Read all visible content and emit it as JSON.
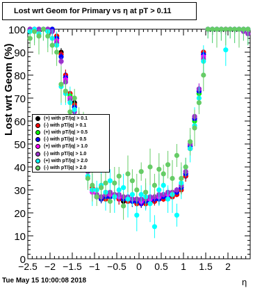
{
  "title": "Lost wrt Geom for Primary vs   η at pT > 0.11",
  "footer": {
    "timestamp": "Tue May 15 10:00:08 2018"
  },
  "chart_data": {
    "type": "scatter",
    "xlabel": "η",
    "ylabel": "Lost wrt Geom (%)",
    "xlim": [
      -2.5,
      2.5
    ],
    "ylim": [
      0,
      100
    ],
    "x_ticks": [
      "−2.5",
      "−2",
      "−1.5",
      "−1",
      "−0.5",
      "0",
      "0.5",
      "1",
      "1.5",
      "2"
    ],
    "x_tick_values": [
      -2.5,
      -2,
      -1.5,
      -1,
      -0.5,
      0,
      0.5,
      1,
      1.5,
      2
    ],
    "y_ticks": [
      "0",
      "10",
      "20",
      "30",
      "40",
      "50",
      "60",
      "70",
      "80",
      "90",
      "100"
    ],
    "y_tick_values": [
      0,
      10,
      20,
      30,
      40,
      50,
      60,
      70,
      80,
      90,
      100
    ],
    "legend_position": "left-middle",
    "series": [
      {
        "name": "(+) with pT/|q| > 0.1",
        "color": "#000000",
        "x": [
          -2.45,
          -2.35,
          -2.25,
          -2.15,
          -2.05,
          -1.95,
          -1.85,
          -1.75,
          -1.65,
          -1.55,
          -1.45,
          -1.35,
          -1.25,
          -1.15,
          -1.05,
          -0.95,
          -0.85,
          -0.75,
          -0.65,
          -0.55,
          -0.45,
          -0.35,
          -0.25,
          -0.15,
          -0.05,
          0.05,
          0.15,
          0.25,
          0.35,
          0.45,
          0.55,
          0.65,
          0.75,
          0.85,
          0.95,
          1.05,
          1.15,
          1.25,
          1.35,
          1.45,
          1.55,
          1.65,
          1.75,
          1.85,
          1.95,
          2.05,
          2.15,
          2.25,
          2.35,
          2.45
        ],
        "y": [
          100,
          100,
          100,
          100,
          100,
          100,
          97,
          90,
          80,
          72,
          68,
          62,
          52,
          40,
          30,
          27,
          26,
          26,
          27,
          27,
          26,
          25,
          25,
          25,
          24,
          24,
          24,
          25,
          25,
          26,
          26,
          27,
          27,
          28,
          30,
          36,
          48,
          60,
          72,
          90,
          100,
          100,
          100,
          100,
          100,
          100,
          100,
          100,
          100,
          100
        ]
      },
      {
        "name": "(-) with pT/|q| > 0.1",
        "color": "#ff0000",
        "x": [
          -2.45,
          -2.35,
          -2.25,
          -2.15,
          -2.05,
          -1.95,
          -1.85,
          -1.75,
          -1.65,
          -1.55,
          -1.45,
          -1.35,
          -1.25,
          -1.15,
          -1.05,
          -0.95,
          -0.85,
          -0.75,
          -0.65,
          -0.55,
          -0.45,
          -0.35,
          -0.25,
          -0.15,
          -0.05,
          0.05,
          0.15,
          0.25,
          0.35,
          0.45,
          0.55,
          0.65,
          0.75,
          0.85,
          0.95,
          1.05,
          1.15,
          1.25,
          1.35,
          1.45,
          1.55,
          1.65,
          1.75,
          1.85,
          1.95,
          2.05,
          2.15,
          2.25,
          2.35,
          2.45
        ],
        "y": [
          100,
          100,
          100,
          100,
          100,
          100,
          97,
          89,
          80,
          72,
          67,
          61,
          51,
          40,
          31,
          27,
          26,
          26,
          27,
          27,
          26,
          26,
          25,
          25,
          24,
          24,
          24,
          25,
          25,
          26,
          26,
          27,
          27,
          28,
          30,
          36,
          48,
          61,
          73,
          90,
          100,
          100,
          100,
          100,
          100,
          100,
          100,
          100,
          100,
          100
        ]
      },
      {
        "name": "(+) with pT/|q| > 0.5",
        "color": "#00ff00",
        "x": [
          -2.45,
          -2.35,
          -2.25,
          -2.15,
          -2.05,
          -1.95,
          -1.85,
          -1.75,
          -1.65,
          -1.55,
          -1.45,
          -1.35,
          -1.25,
          -1.15,
          -1.05,
          -0.95,
          -0.85,
          -0.75,
          -0.65,
          -0.55,
          -0.45,
          -0.35,
          -0.25,
          -0.15,
          -0.05,
          0.05,
          0.15,
          0.25,
          0.35,
          0.45,
          0.55,
          0.65,
          0.75,
          0.85,
          0.95,
          1.05,
          1.15,
          1.25,
          1.35,
          1.45,
          1.55,
          1.65,
          1.75,
          1.85,
          1.95,
          2.05,
          2.15,
          2.25,
          2.35,
          2.45
        ],
        "y": [
          100,
          100,
          100,
          100,
          100,
          100,
          96,
          88,
          79,
          71,
          66,
          60,
          50,
          39,
          30,
          27,
          26,
          27,
          28,
          27,
          27,
          26,
          26,
          25,
          25,
          25,
          25,
          25,
          26,
          26,
          27,
          27,
          28,
          29,
          31,
          37,
          49,
          60,
          72,
          89,
          100,
          100,
          100,
          100,
          100,
          100,
          100,
          100,
          100,
          100
        ]
      },
      {
        "name": "(-) with pT/|q| > 0.5",
        "color": "#0000ff",
        "x": [
          -2.45,
          -2.35,
          -2.25,
          -2.15,
          -2.05,
          -1.95,
          -1.85,
          -1.75,
          -1.65,
          -1.55,
          -1.45,
          -1.35,
          -1.25,
          -1.15,
          -1.05,
          -0.95,
          -0.85,
          -0.75,
          -0.65,
          -0.55,
          -0.45,
          -0.35,
          -0.25,
          -0.15,
          -0.05,
          0.05,
          0.15,
          0.25,
          0.35,
          0.45,
          0.55,
          0.65,
          0.75,
          0.85,
          0.95,
          1.05,
          1.15,
          1.25,
          1.35,
          1.45,
          1.55,
          1.65,
          1.75,
          1.85,
          1.95,
          2.05,
          2.15,
          2.25,
          2.35,
          2.45
        ],
        "y": [
          100,
          100,
          100,
          100,
          100,
          100,
          96,
          88,
          79,
          70,
          66,
          60,
          51,
          39,
          30,
          27,
          26,
          27,
          27,
          27,
          27,
          26,
          26,
          25,
          25,
          24,
          25,
          25,
          26,
          26,
          27,
          27,
          28,
          29,
          31,
          37,
          49,
          61,
          73,
          89,
          100,
          100,
          100,
          100,
          100,
          100,
          100,
          100,
          100,
          100
        ]
      },
      {
        "name": "(+) with pT/|q| > 1.0",
        "color": "#ff00ff",
        "x": [
          -2.45,
          -2.35,
          -2.25,
          -2.15,
          -2.05,
          -1.95,
          -1.85,
          -1.75,
          -1.65,
          -1.55,
          -1.45,
          -1.35,
          -1.25,
          -1.15,
          -1.05,
          -0.95,
          -0.85,
          -0.75,
          -0.65,
          -0.55,
          -0.45,
          -0.35,
          -0.25,
          -0.15,
          -0.05,
          0.05,
          0.15,
          0.25,
          0.35,
          0.45,
          0.55,
          0.65,
          0.75,
          0.85,
          0.95,
          1.05,
          1.15,
          1.25,
          1.35,
          1.45,
          1.55,
          1.65,
          1.75,
          1.85,
          1.95,
          2.05,
          2.15,
          2.25,
          2.35,
          2.45
        ],
        "y": [
          100,
          100,
          100,
          100,
          100,
          99,
          95,
          86,
          78,
          70,
          65,
          58,
          49,
          38,
          29,
          27,
          27,
          28,
          28,
          28,
          27,
          27,
          26,
          26,
          26,
          25,
          26,
          26,
          27,
          27,
          28,
          28,
          29,
          30,
          32,
          38,
          50,
          62,
          74,
          88,
          100,
          100,
          100,
          100,
          100,
          100,
          100,
          100,
          100,
          98
        ]
      },
      {
        "name": "(-) with pT/|q| > 1.0",
        "color": "#9932cc",
        "x": [
          -2.45,
          -2.35,
          -2.25,
          -2.15,
          -2.05,
          -1.95,
          -1.85,
          -1.75,
          -1.65,
          -1.55,
          -1.45,
          -1.35,
          -1.25,
          -1.15,
          -1.05,
          -0.95,
          -0.85,
          -0.75,
          -0.65,
          -0.55,
          -0.45,
          -0.35,
          -0.25,
          -0.15,
          -0.05,
          0.05,
          0.15,
          0.25,
          0.35,
          0.45,
          0.55,
          0.65,
          0.75,
          0.85,
          0.95,
          1.05,
          1.15,
          1.25,
          1.35,
          1.45,
          1.55,
          1.65,
          1.75,
          1.85,
          1.95,
          2.05,
          2.15,
          2.25,
          2.35,
          2.45
        ],
        "y": [
          100,
          100,
          100,
          100,
          100,
          99,
          94,
          86,
          77,
          69,
          64,
          58,
          49,
          38,
          30,
          28,
          27,
          28,
          29,
          28,
          28,
          27,
          27,
          26,
          26,
          26,
          26,
          27,
          27,
          28,
          28,
          29,
          29,
          30,
          32,
          38,
          50,
          62,
          74,
          87,
          100,
          100,
          100,
          100,
          100,
          100,
          100,
          100,
          99,
          98
        ]
      },
      {
        "name": "(+) with pT/|q| > 2.0",
        "color": "#00ffff",
        "x": [
          -2.45,
          -2.35,
          -2.25,
          -2.15,
          -2.05,
          -1.95,
          -1.85,
          -1.75,
          -1.65,
          -1.55,
          -1.45,
          -1.35,
          -1.25,
          -1.15,
          -1.05,
          -0.95,
          -0.85,
          -0.75,
          -0.65,
          -0.55,
          -0.45,
          -0.35,
          -0.25,
          -0.15,
          -0.05,
          0.05,
          0.15,
          0.25,
          0.35,
          0.45,
          0.55,
          0.65,
          0.75,
          0.85,
          0.95,
          1.05,
          1.15,
          1.25,
          1.35,
          1.45,
          1.55,
          1.65,
          1.75,
          1.85,
          1.95,
          2.05,
          2.15,
          2.25,
          2.35,
          2.45
        ],
        "y": [
          99,
          100,
          98,
          100,
          99,
          96,
          93,
          75,
          72,
          68,
          65,
          56,
          48,
          36,
          30,
          30,
          32,
          29,
          34,
          27,
          30,
          31,
          26,
          28,
          19,
          28,
          27,
          24,
          14,
          30,
          32,
          26,
          28,
          19,
          33,
          40,
          48,
          58,
          70,
          86,
          100,
          100,
          100,
          100,
          91,
          100,
          100,
          100,
          100,
          100
        ]
      },
      {
        "name": "(-) with pT/|q| > 2.0",
        "color": "#66cc66",
        "x": [
          -2.45,
          -2.35,
          -2.25,
          -2.15,
          -2.05,
          -1.95,
          -1.85,
          -1.75,
          -1.65,
          -1.55,
          -1.45,
          -1.35,
          -1.25,
          -1.15,
          -1.05,
          -0.95,
          -0.85,
          -0.75,
          -0.65,
          -0.55,
          -0.45,
          -0.35,
          -0.25,
          -0.15,
          -0.05,
          0.05,
          0.15,
          0.25,
          0.35,
          0.45,
          0.55,
          0.65,
          0.75,
          0.85,
          0.95,
          1.05,
          1.15,
          1.25,
          1.35,
          1.45,
          1.55,
          1.65,
          1.75,
          1.85,
          1.95,
          2.05,
          2.15,
          2.25,
          2.35,
          2.45
        ],
        "y": [
          96,
          99,
          97,
          100,
          97,
          93,
          90,
          76,
          73,
          64,
          70,
          60,
          56,
          35,
          32,
          27,
          31,
          33,
          25,
          33,
          36,
          23,
          37,
          34,
          30,
          38,
          29,
          40,
          32,
          39,
          37,
          41,
          35,
          45,
          35,
          40,
          51,
          57,
          68,
          80,
          100,
          100,
          100,
          100,
          100,
          100,
          100,
          100,
          100,
          100
        ]
      }
    ]
  },
  "legend": {
    "items": [
      "(+) with pT/|q| > 0.1",
      "(-) with pT/|q| > 0.1",
      "(+) with pT/|q| > 0.5",
      "(-) with pT/|q| > 0.5",
      "(+) with pT/|q| > 1.0",
      "(-) with pT/|q| > 1.0",
      "(+) with pT/|q| > 2.0",
      "(-) with pT/|q| > 2.0"
    ],
    "colors": [
      "#000000",
      "#ff0000",
      "#00ff00",
      "#0000ff",
      "#ff00ff",
      "#9932cc",
      "#00ffff",
      "#66cc66"
    ]
  }
}
